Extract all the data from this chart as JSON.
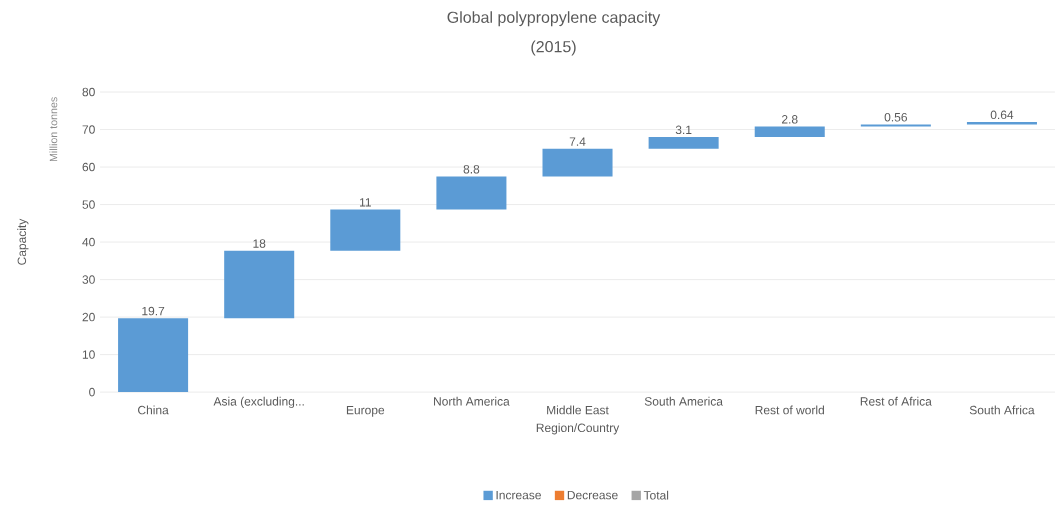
{
  "chart_data": {
    "type": "bar",
    "title": "Global polypropylene capacity",
    "subtitle": "(2015)",
    "xlabel": "Region/Country",
    "ylabel": "Capacity",
    "annotations": [
      "Million tonnes"
    ],
    "categories": [
      "China",
      "Asia (excluding...",
      "Europe",
      "North America",
      "Middle East",
      "South America",
      "Rest of world",
      "Rest of Africa",
      "South Africa"
    ],
    "series": [
      {
        "name": "Increase",
        "color": "#5b9bd5",
        "values": [
          19.7,
          18,
          11,
          8.8,
          7.4,
          3.1,
          2.8,
          0.56,
          0.64
        ],
        "base": [
          0,
          19.7,
          37.7,
          48.7,
          57.5,
          64.9,
          68.0,
          70.8,
          71.36
        ]
      },
      {
        "name": "Decrease",
        "color": "#ed7d31",
        "values": [
          null,
          null,
          null,
          null,
          null,
          null,
          null,
          null,
          null
        ]
      },
      {
        "name": "Total",
        "color": "#a5a5a5",
        "values": [
          null,
          null,
          null,
          null,
          null,
          null,
          null,
          null,
          null
        ]
      }
    ],
    "ylim": [
      0,
      80
    ],
    "yticks": [
      0,
      10,
      20,
      30,
      40,
      50,
      60,
      70,
      80
    ],
    "grid": "y",
    "legend": "bottom",
    "data_labels": true
  }
}
